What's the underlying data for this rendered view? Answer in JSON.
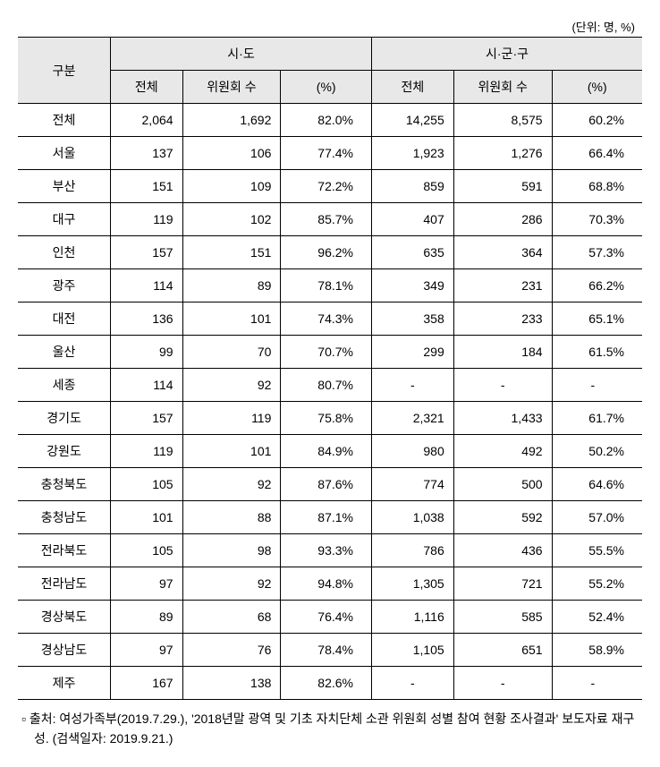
{
  "unit_label": "(단위: 명, %)",
  "header": {
    "col1": "구분",
    "group1": "시·도",
    "group2": "시·군·구",
    "sub_total": "전체",
    "sub_count": "위원회 수",
    "sub_pct": "(%)"
  },
  "rows": [
    {
      "region": "전체",
      "g1_total": "2,064",
      "g1_count": "1,692",
      "g1_pct": "82.0%",
      "g2_total": "14,255",
      "g2_count": "8,575",
      "g2_pct": "60.2%"
    },
    {
      "region": "서울",
      "g1_total": "137",
      "g1_count": "106",
      "g1_pct": "77.4%",
      "g2_total": "1,923",
      "g2_count": "1,276",
      "g2_pct": "66.4%"
    },
    {
      "region": "부산",
      "g1_total": "151",
      "g1_count": "109",
      "g1_pct": "72.2%",
      "g2_total": "859",
      "g2_count": "591",
      "g2_pct": "68.8%"
    },
    {
      "region": "대구",
      "g1_total": "119",
      "g1_count": "102",
      "g1_pct": "85.7%",
      "g2_total": "407",
      "g2_count": "286",
      "g2_pct": "70.3%"
    },
    {
      "region": "인천",
      "g1_total": "157",
      "g1_count": "151",
      "g1_pct": "96.2%",
      "g2_total": "635",
      "g2_count": "364",
      "g2_pct": "57.3%"
    },
    {
      "region": "광주",
      "g1_total": "114",
      "g1_count": "89",
      "g1_pct": "78.1%",
      "g2_total": "349",
      "g2_count": "231",
      "g2_pct": "66.2%"
    },
    {
      "region": "대전",
      "g1_total": "136",
      "g1_count": "101",
      "g1_pct": "74.3%",
      "g2_total": "358",
      "g2_count": "233",
      "g2_pct": "65.1%"
    },
    {
      "region": "울산",
      "g1_total": "99",
      "g1_count": "70",
      "g1_pct": "70.7%",
      "g2_total": "299",
      "g2_count": "184",
      "g2_pct": "61.5%"
    },
    {
      "region": "세종",
      "g1_total": "114",
      "g1_count": "92",
      "g1_pct": "80.7%",
      "g2_total": "-",
      "g2_count": "-",
      "g2_pct": "-"
    },
    {
      "region": "경기도",
      "g1_total": "157",
      "g1_count": "119",
      "g1_pct": "75.8%",
      "g2_total": "2,321",
      "g2_count": "1,433",
      "g2_pct": "61.7%"
    },
    {
      "region": "강원도",
      "g1_total": "119",
      "g1_count": "101",
      "g1_pct": "84.9%",
      "g2_total": "980",
      "g2_count": "492",
      "g2_pct": "50.2%"
    },
    {
      "region": "충청북도",
      "g1_total": "105",
      "g1_count": "92",
      "g1_pct": "87.6%",
      "g2_total": "774",
      "g2_count": "500",
      "g2_pct": "64.6%"
    },
    {
      "region": "충청남도",
      "g1_total": "101",
      "g1_count": "88",
      "g1_pct": "87.1%",
      "g2_total": "1,038",
      "g2_count": "592",
      "g2_pct": "57.0%"
    },
    {
      "region": "전라북도",
      "g1_total": "105",
      "g1_count": "98",
      "g1_pct": "93.3%",
      "g2_total": "786",
      "g2_count": "436",
      "g2_pct": "55.5%"
    },
    {
      "region": "전라남도",
      "g1_total": "97",
      "g1_count": "92",
      "g1_pct": "94.8%",
      "g2_total": "1,305",
      "g2_count": "721",
      "g2_pct": "55.2%"
    },
    {
      "region": "경상북도",
      "g1_total": "89",
      "g1_count": "68",
      "g1_pct": "76.4%",
      "g2_total": "1,116",
      "g2_count": "585",
      "g2_pct": "52.4%"
    },
    {
      "region": "경상남도",
      "g1_total": "97",
      "g1_count": "76",
      "g1_pct": "78.4%",
      "g2_total": "1,105",
      "g2_count": "651",
      "g2_pct": "58.9%"
    },
    {
      "region": "제주",
      "g1_total": "167",
      "g1_count": "138",
      "g1_pct": "82.6%",
      "g2_total": "-",
      "g2_count": "-",
      "g2_pct": "-"
    }
  ],
  "footnote": "▫ 출처: 여성가족부(2019.7.29.), '2018년말 광역 및 기초 자치단체 소관 위원회 성별 참여 현황 조사결과' 보도자료 재구성. (검색일자: 2019.9.21.)",
  "styling": {
    "header_bg": "#e8e8e8",
    "border_color": "#000000",
    "text_color": "#000000",
    "font_size_body": 14,
    "font_size_unit": 13,
    "font_size_footnote": 14
  }
}
